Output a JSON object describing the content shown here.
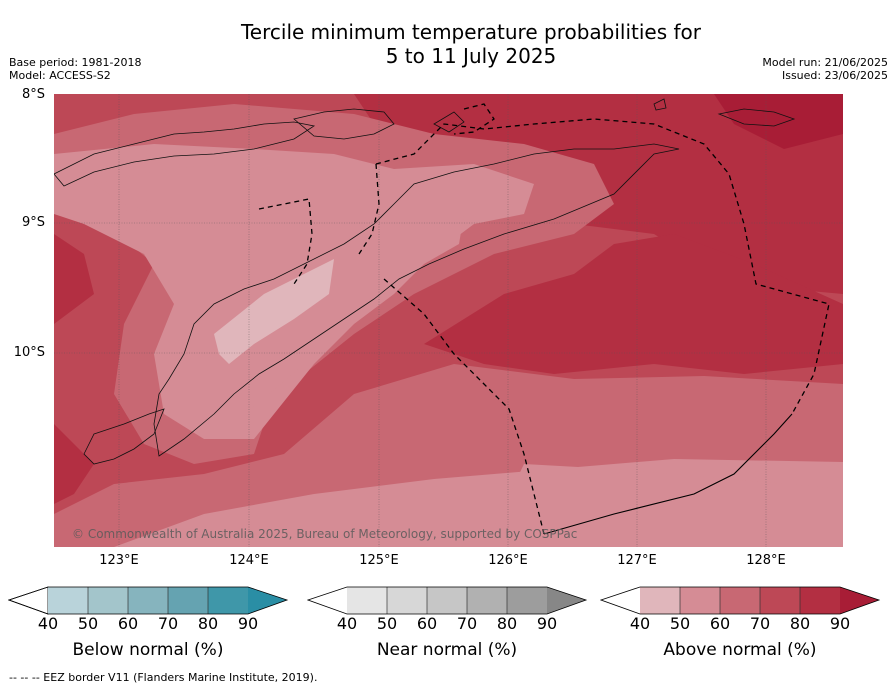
{
  "title_line1": "Tercile minimum temperature probabilities for",
  "title_line2": "5 to 11 July 2025",
  "meta": {
    "base_period": "Base period: 1981-2018",
    "model": "Model: ACCESS-S2",
    "model_run": "Model run: 21/06/2025",
    "issued": "Issued: 23/06/2025"
  },
  "map": {
    "lat_labels": [
      "8°S",
      "9°S",
      "10°S"
    ],
    "lon_labels": [
      "123°E",
      "124°E",
      "125°E",
      "126°E",
      "127°E",
      "128°E"
    ],
    "copyright": "© Commonwealth of Australia 2025, Bureau of Meteorology, supported by COSPPac",
    "colors": {
      "above_50": "#e0b6bb",
      "above_60": "#d58c95",
      "above_70": "#c86873",
      "above_80": "#bd4856",
      "above_90": "#b32f42",
      "above_max": "#a81d36"
    }
  },
  "colorbars": [
    {
      "label": "Below normal (%)",
      "ticks": [
        "40",
        "50",
        "60",
        "70",
        "80",
        "90"
      ],
      "colors": [
        "#b9d3da",
        "#a3c5cb",
        "#86b4be",
        "#65a3b1",
        "#3f97a9"
      ],
      "low_color": "#ffffff",
      "high_color": "#2a8ea5"
    },
    {
      "label": "Near normal (%)",
      "ticks": [
        "40",
        "50",
        "60",
        "70",
        "80",
        "90"
      ],
      "colors": [
        "#e5e5e5",
        "#d7d7d7",
        "#c6c6c6",
        "#b1b1b1",
        "#9d9d9d"
      ],
      "low_color": "#ffffff",
      "high_color": "#878787"
    },
    {
      "label": "Above normal (%)",
      "ticks": [
        "40",
        "50",
        "60",
        "70",
        "80",
        "90"
      ],
      "colors": [
        "#e0b6bb",
        "#d58c95",
        "#c86873",
        "#bd4856",
        "#b32f42"
      ],
      "low_color": "#ffffff",
      "high_color": "#a81d36"
    }
  ],
  "footer": "--  --  -- EEZ border V11 (Flanders Marine Institute, 2019)."
}
